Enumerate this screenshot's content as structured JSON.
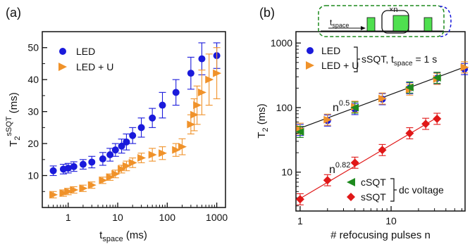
{
  "colors": {
    "led": "#1a1adb",
    "led_u": "#f0922a",
    "csqt": "#1e8a1e",
    "ssqt": "#e01818",
    "axis": "#111111",
    "pulse": "#4fe04f",
    "frame": "#1e8a1e",
    "frame2": "#1a1adb"
  },
  "chart_data": [
    {
      "type": "scatter",
      "panel_label": "(a)",
      "xscale": "log",
      "xlim": [
        0.3,
        1500
      ],
      "ylim": [
        0,
        55
      ],
      "xticks": [
        1,
        10,
        100,
        1000
      ],
      "xtick_labels": [
        "1",
        "10",
        "100",
        "1000"
      ],
      "yticks": [
        10,
        20,
        30,
        40,
        50
      ],
      "ytick_labels": [
        "10",
        "20",
        "30",
        "40",
        "50"
      ],
      "xlabel_main": "t",
      "xlabel_sub": "space",
      "xlabel_unit": " (ms)",
      "ylabel_main": "T",
      "ylabel_sub": "2",
      "ylabel_sup": "sSQT",
      "ylabel_unit": " (ms)",
      "legend": {
        "position": "top-left"
      },
      "series": [
        {
          "name": "LED",
          "marker": "circle",
          "x": [
            0.5,
            0.8,
            1.0,
            1.3,
            2.0,
            3.0,
            5.0,
            7.0,
            9.0,
            12,
            15,
            20,
            30,
            50,
            80,
            150,
            300,
            500,
            1000
          ],
          "y": [
            11.5,
            12,
            12.3,
            12.8,
            13.5,
            14.2,
            15.2,
            16.5,
            18,
            19.2,
            20.5,
            22.5,
            25,
            28,
            32,
            36,
            42,
            46.5,
            47.5
          ],
          "err": [
            1.5,
            1.5,
            1.5,
            1.5,
            1.5,
            1.8,
            2,
            2,
            2,
            2.2,
            2.5,
            2.5,
            3,
            3,
            4,
            4,
            5,
            5,
            4
          ]
        },
        {
          "name": "LED + U",
          "marker": "triangle-right",
          "x": [
            0.5,
            0.8,
            1.0,
            1.3,
            2.0,
            3.0,
            5.0,
            7.0,
            9.0,
            12,
            15,
            20,
            30,
            50,
            80,
            150,
            200,
            300,
            350,
            400,
            500,
            700,
            1000
          ],
          "y": [
            4,
            4.5,
            5,
            5.5,
            6,
            7,
            8.5,
            9.5,
            10.5,
            12,
            13,
            14,
            15.5,
            16.5,
            17,
            18,
            19,
            26,
            29,
            32,
            36,
            40,
            42
          ],
          "err": [
            1,
            1,
            1,
            1,
            1,
            1,
            1,
            1,
            1.2,
            1.2,
            1.5,
            1.5,
            1.5,
            2,
            2,
            2,
            2.5,
            3,
            5,
            6,
            7,
            8,
            8
          ]
        }
      ]
    },
    {
      "type": "scatter",
      "panel_label": "(b)",
      "xscale": "log",
      "yscale": "log",
      "xlim": [
        0.9,
        65
      ],
      "ylim": [
        2.5,
        1500
      ],
      "xticks": [
        1,
        10
      ],
      "xtick_labels": [
        "1",
        "10"
      ],
      "yticks": [
        10,
        100,
        1000
      ],
      "ytick_labels": [
        "10",
        "100",
        "1000"
      ],
      "xlabel": "# refocusing pulses n",
      "ylabel_main": "T",
      "ylabel_sub": "2",
      "ylabel_unit": " (ms)",
      "legend_top": {
        "entries": [
          "LED",
          "LED + U"
        ],
        "bracket_label": "sSQT, t",
        "bracket_sub": "space",
        "bracket_tail": " = 1 s"
      },
      "legend_bottom": {
        "entries": [
          "cSQT",
          "sSQT"
        ],
        "bracket_label": "dc voltage"
      },
      "annotations": [
        {
          "base": "n",
          "exp": "0.5",
          "color_key": "axis"
        },
        {
          "base": "n",
          "exp": "0.82",
          "color_key": "ssqt"
        }
      ],
      "inset": {
        "label_main": "t",
        "label_sub": "space",
        "repeat_label": "×n"
      },
      "fits": [
        {
          "series": "black",
          "x": [
            1,
            60
          ],
          "y": [
            48,
            410
          ]
        },
        {
          "series": "red",
          "x": [
            1,
            32
          ],
          "y": [
            3.9,
            70
          ]
        }
      ],
      "series": [
        {
          "name": "LED",
          "marker": "circle",
          "x": [
            1,
            2,
            4,
            8,
            16,
            32,
            64
          ],
          "y": [
            45,
            63,
            95,
            135,
            200,
            285,
            395
          ]
        },
        {
          "name": "LED + U",
          "marker": "triangle-right",
          "x": [
            1,
            2,
            4,
            8,
            16,
            32,
            64
          ],
          "y": [
            47,
            65,
            103,
            138,
            190,
            278,
            420
          ]
        },
        {
          "name": "cSQT",
          "marker": "triangle-left",
          "x": [
            1,
            4,
            16,
            32
          ],
          "y": [
            42,
            100,
            205,
            290
          ]
        },
        {
          "name": "sSQT",
          "marker": "diamond",
          "x": [
            1,
            2,
            4,
            8,
            16,
            24,
            32
          ],
          "y": [
            3.8,
            7.5,
            14,
            22,
            40,
            56,
            67
          ]
        }
      ]
    }
  ]
}
